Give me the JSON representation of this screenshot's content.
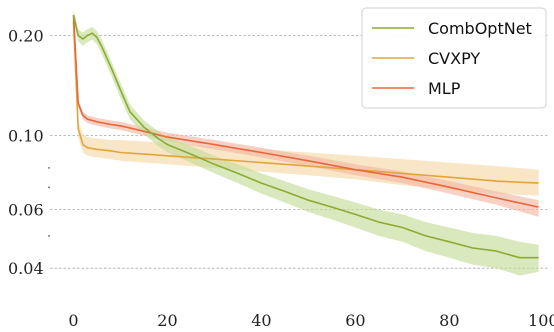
{
  "chart_data": {
    "type": "line",
    "title": "",
    "xlabel": "",
    "ylabel": "",
    "xlim": [
      -5,
      101
    ],
    "ylim": [
      0.033,
      0.245
    ],
    "y_scale": "log",
    "x_ticks": [
      0,
      20,
      40,
      60,
      80,
      100
    ],
    "y_ticks": [
      0.04,
      0.06,
      0.1,
      0.2
    ],
    "y_tick_labels": [
      "0.04",
      "0.06",
      "0.10",
      "0.20"
    ],
    "y_minor_ticks": [
      0.05,
      0.07,
      0.08
    ],
    "grid": "horizontal dashed at labeled y ticks",
    "legend_position": "top-right",
    "series": [
      {
        "name": "CombOptNet",
        "color": "#8aac32",
        "band_color": "#c6dc9a",
        "x": [
          0,
          1,
          2,
          3,
          4,
          5,
          6,
          8,
          10,
          12,
          15,
          18,
          20,
          25,
          30,
          35,
          40,
          45,
          50,
          55,
          60,
          65,
          70,
          75,
          80,
          85,
          90,
          95,
          99
        ],
        "y": [
          0.23,
          0.2,
          0.195,
          0.2,
          0.203,
          0.197,
          0.185,
          0.16,
          0.137,
          0.118,
          0.106,
          0.098,
          0.094,
          0.088,
          0.082,
          0.077,
          0.072,
          0.068,
          0.064,
          0.061,
          0.058,
          0.055,
          0.053,
          0.05,
          0.048,
          0.046,
          0.045,
          0.043,
          0.043
        ],
        "lower": [
          0.22,
          0.192,
          0.186,
          0.191,
          0.194,
          0.188,
          0.176,
          0.152,
          0.13,
          0.112,
          0.101,
          0.093,
          0.089,
          0.083,
          0.077,
          0.072,
          0.067,
          0.063,
          0.059,
          0.056,
          0.053,
          0.05,
          0.048,
          0.045,
          0.043,
          0.041,
          0.04,
          0.038,
          0.039
        ],
        "upper": [
          0.24,
          0.208,
          0.204,
          0.209,
          0.212,
          0.206,
          0.194,
          0.168,
          0.144,
          0.124,
          0.111,
          0.103,
          0.099,
          0.093,
          0.087,
          0.082,
          0.077,
          0.073,
          0.069,
          0.066,
          0.063,
          0.06,
          0.058,
          0.055,
          0.053,
          0.051,
          0.05,
          0.048,
          0.047
        ]
      },
      {
        "name": "CVXPY",
        "color": "#e3a53a",
        "band_color": "#f5d9a8",
        "x": [
          0,
          1,
          2,
          3,
          5,
          8,
          10,
          15,
          20,
          30,
          40,
          50,
          60,
          70,
          80,
          90,
          99
        ],
        "y": [
          0.22,
          0.105,
          0.094,
          0.092,
          0.091,
          0.09,
          0.089,
          0.088,
          0.087,
          0.085,
          0.083,
          0.081,
          0.079,
          0.077,
          0.075,
          0.073,
          0.072
        ],
        "lower": [
          0.21,
          0.099,
          0.089,
          0.087,
          0.086,
          0.085,
          0.084,
          0.083,
          0.082,
          0.08,
          0.078,
          0.076,
          0.074,
          0.071,
          0.069,
          0.067,
          0.066
        ],
        "upper": [
          0.23,
          0.111,
          0.101,
          0.099,
          0.098,
          0.097,
          0.097,
          0.096,
          0.095,
          0.093,
          0.091,
          0.089,
          0.087,
          0.085,
          0.083,
          0.081,
          0.079
        ]
      },
      {
        "name": "MLP",
        "color": "#e8673c",
        "band_color": "#f2b9a3",
        "x": [
          0,
          1,
          2,
          3,
          5,
          8,
          10,
          15,
          20,
          30,
          40,
          50,
          60,
          70,
          80,
          90,
          99
        ],
        "y": [
          0.23,
          0.125,
          0.115,
          0.112,
          0.11,
          0.108,
          0.107,
          0.103,
          0.099,
          0.094,
          0.089,
          0.084,
          0.079,
          0.075,
          0.07,
          0.065,
          0.061
        ],
        "lower": [
          0.225,
          0.122,
          0.112,
          0.109,
          0.107,
          0.105,
          0.104,
          0.1,
          0.096,
          0.091,
          0.086,
          0.081,
          0.076,
          0.072,
          0.067,
          0.062,
          0.057
        ],
        "upper": [
          0.235,
          0.128,
          0.118,
          0.115,
          0.113,
          0.111,
          0.11,
          0.106,
          0.102,
          0.097,
          0.092,
          0.087,
          0.082,
          0.078,
          0.073,
          0.068,
          0.064
        ]
      }
    ]
  }
}
